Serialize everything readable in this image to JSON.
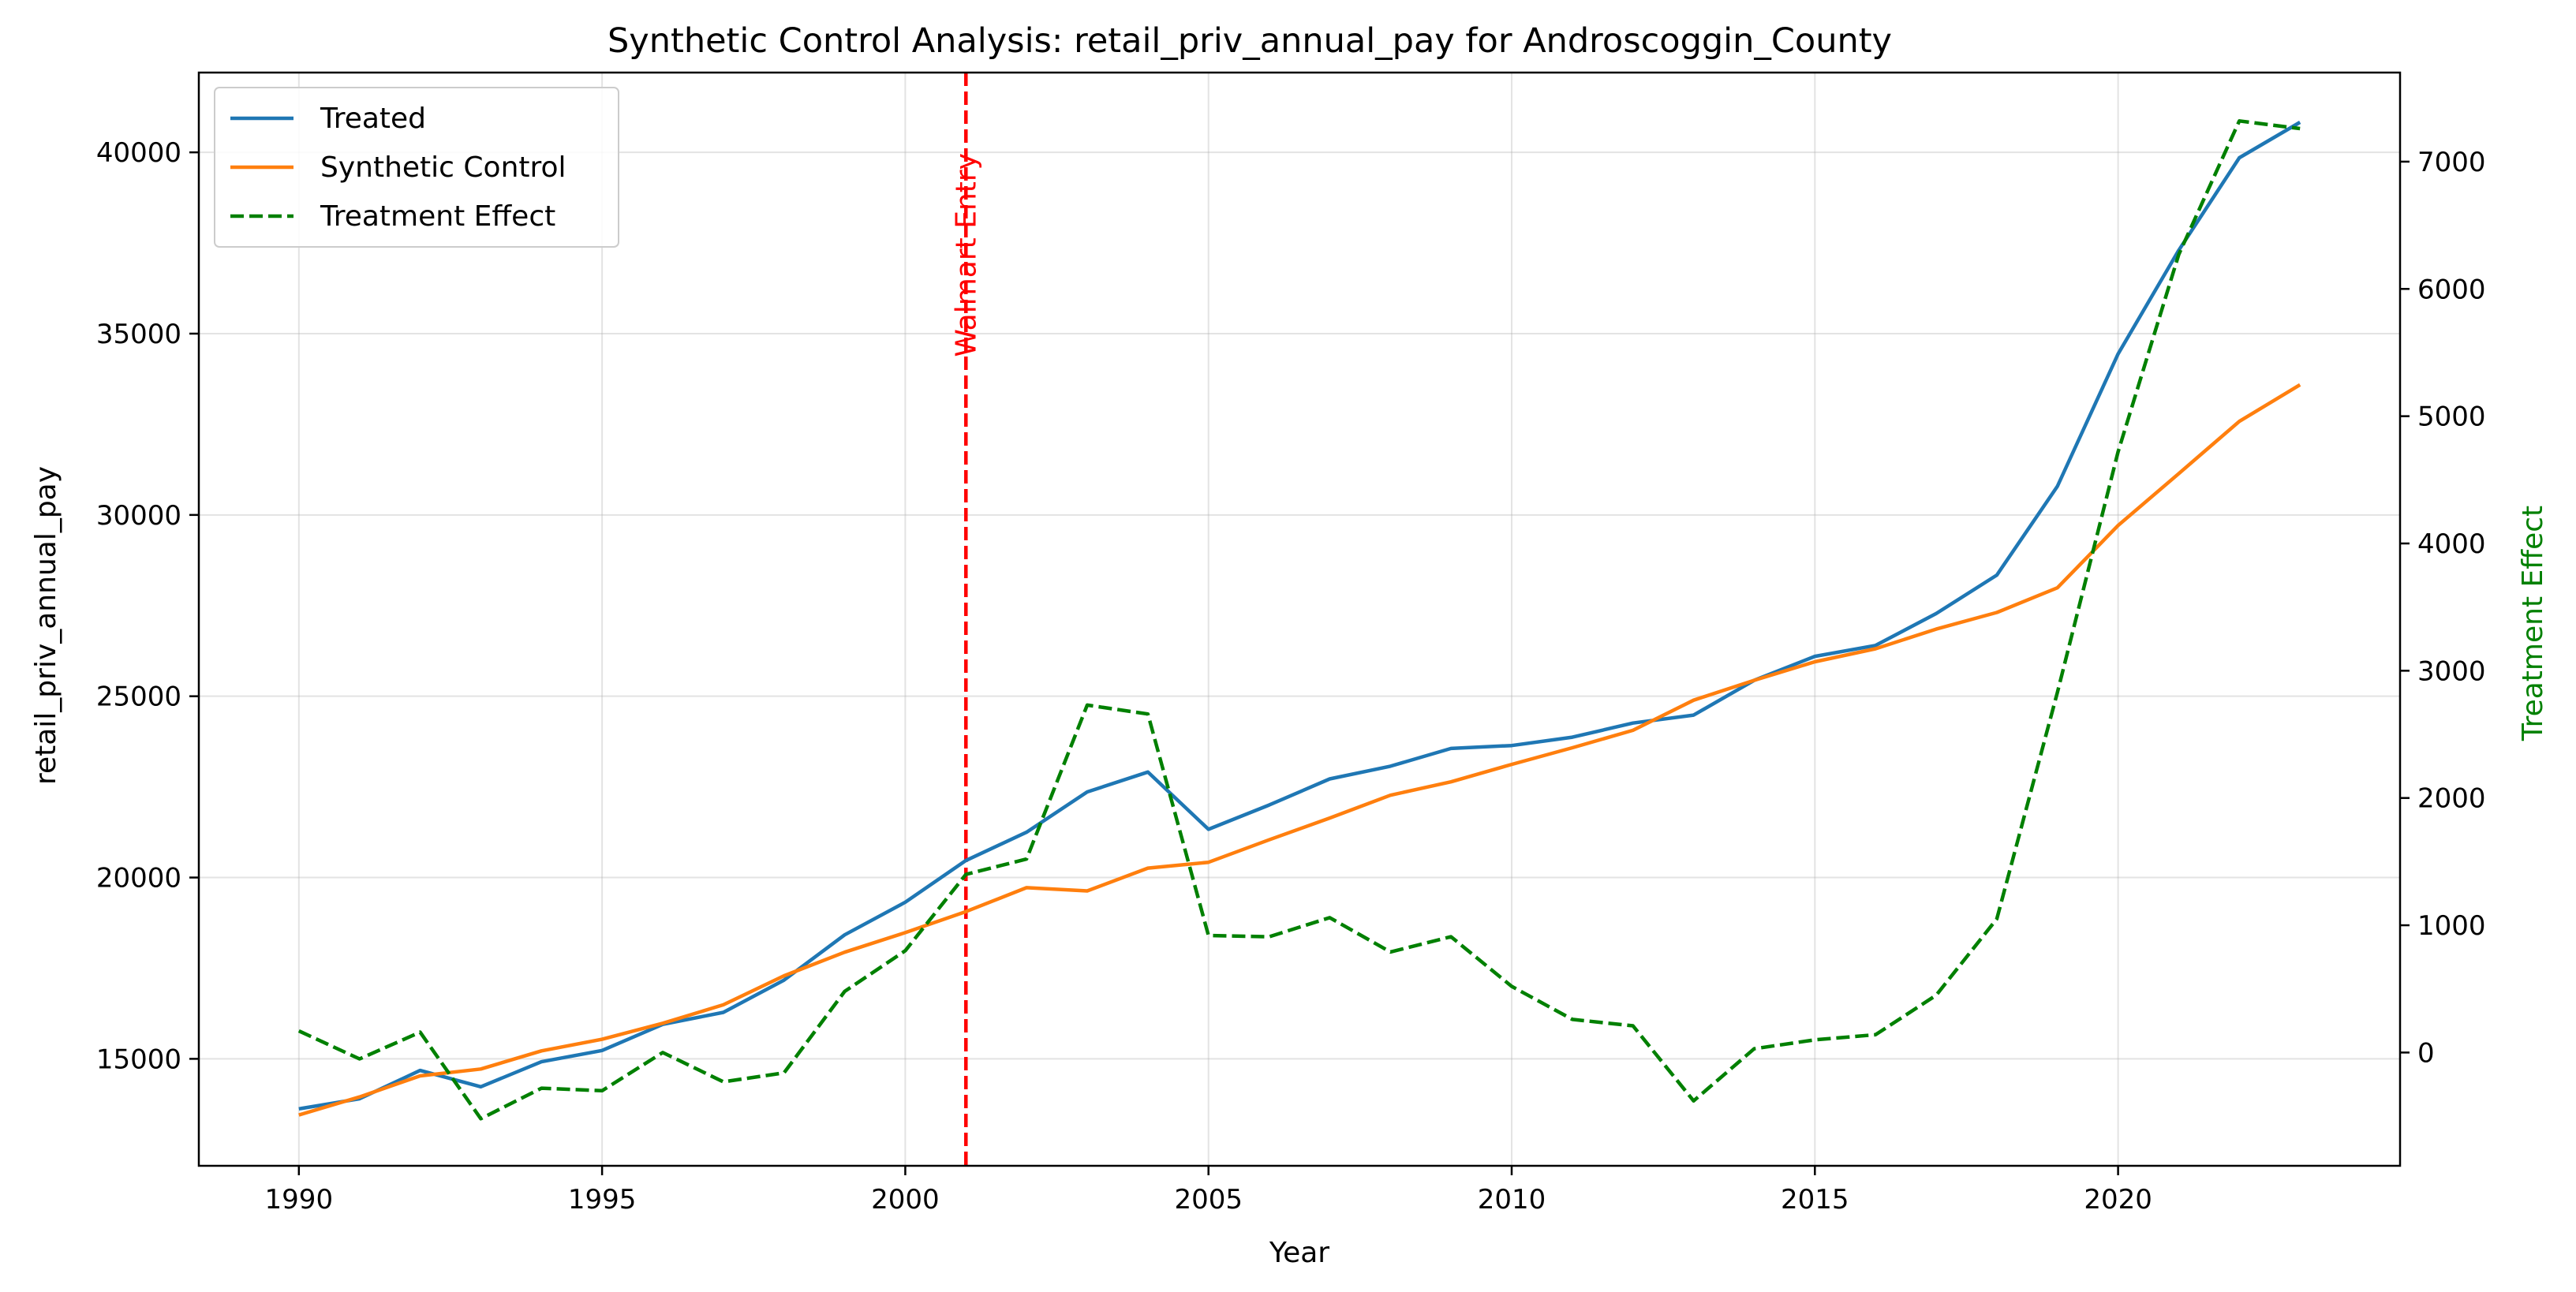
{
  "chart_data": {
    "type": "line",
    "title": "Synthetic Control Analysis: retail_priv_annual_pay for Androscoggin_County",
    "xlabel": "Year",
    "ylabel": "retail_priv_annual_pay",
    "y2label": "Treatment Effect",
    "xlim": [
      1988.35,
      2024.65
    ],
    "ylim": [
      12050,
      42200
    ],
    "y2lim": [
      -890,
      7700
    ],
    "xticks": [
      1990,
      1995,
      2000,
      2005,
      2010,
      2015,
      2020
    ],
    "yticks": [
      15000,
      20000,
      25000,
      30000,
      35000,
      40000
    ],
    "y2ticks": [
      0,
      1000,
      2000,
      3000,
      4000,
      5000,
      6000,
      7000
    ],
    "grid": true,
    "legend": "upper-left",
    "x": [
      1990,
      1991,
      1992,
      1993,
      1994,
      1995,
      1996,
      1997,
      1998,
      1999,
      2000,
      2001,
      2002,
      2003,
      2004,
      2005,
      2006,
      2007,
      2008,
      2009,
      2010,
      2011,
      2012,
      2013,
      2014,
      2015,
      2016,
      2017,
      2018,
      2019,
      2020,
      2021,
      2022,
      2023
    ],
    "series": [
      {
        "name": "Treated",
        "axis": "left",
        "color": "#1f77b4",
        "style": "solid",
        "values": [
          13620,
          13900,
          14680,
          14230,
          14920,
          15230,
          15950,
          16280,
          17170,
          18420,
          19320,
          20470,
          21250,
          22360,
          22910,
          21330,
          22000,
          22720,
          23070,
          23560,
          23640,
          23870,
          24260,
          24480,
          25440,
          26100,
          26400,
          27280,
          28340,
          30790,
          34440,
          37300,
          39850,
          40830
        ]
      },
      {
        "name": "Synthetic Control",
        "axis": "left",
        "color": "#ff7f0e",
        "style": "solid",
        "values": [
          13450,
          13950,
          14530,
          14720,
          15220,
          15540,
          15980,
          16490,
          17290,
          17940,
          18480,
          19060,
          19720,
          19630,
          20260,
          20420,
          21040,
          21640,
          22270,
          22640,
          23120,
          23580,
          24060,
          24890,
          25440,
          25950,
          26310,
          26850,
          27310,
          27990,
          29710,
          31140,
          32580,
          33590
        ]
      },
      {
        "name": "Treatment Effect",
        "axis": "right",
        "color": "#008000",
        "style": "dashed",
        "values": [
          170,
          -50,
          160,
          -520,
          -280,
          -300,
          0,
          -230,
          -160,
          480,
          800,
          1400,
          1520,
          2730,
          2660,
          920,
          910,
          1060,
          790,
          910,
          520,
          260,
          210,
          -380,
          30,
          100,
          140,
          450,
          1050,
          2830,
          4720,
          6270,
          7320,
          7260
        ]
      }
    ],
    "annotations": [
      {
        "type": "vline",
        "x": 2001,
        "color": "#ff0000",
        "style": "dashed",
        "label": "Walmart Entry"
      }
    ]
  }
}
